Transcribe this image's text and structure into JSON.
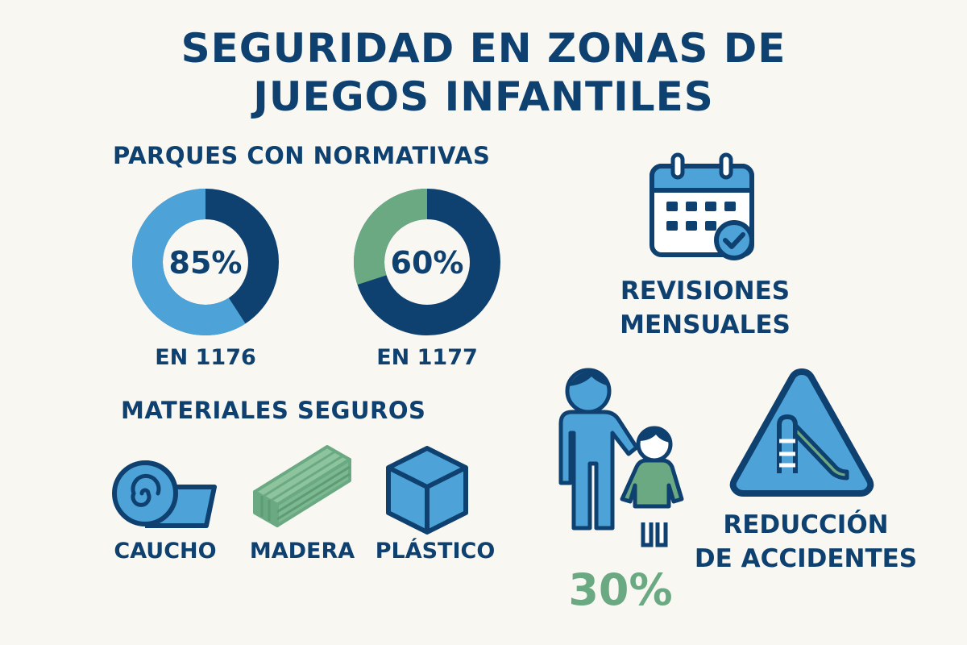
{
  "title": {
    "line1": "SEGURIDAD EN ZONAS DE",
    "line2": "JUEGOS INFANTILES"
  },
  "parks_section": {
    "heading": "PARQUES CON NORMATIVAS",
    "donuts": [
      {
        "percent_label": "85%",
        "value": 0.85,
        "caption": "EN 1176",
        "accent": "#4da3d8"
      },
      {
        "percent_label": "60%",
        "value": 0.6,
        "caption": "EN 1177",
        "accent": "#6aa982"
      }
    ],
    "dark_color": "#0f4170"
  },
  "inspections": {
    "icon": "calendar-check-icon",
    "label_line1": "REVISIONES",
    "label_line2": "MENSUALES"
  },
  "materials_section": {
    "heading": "MATERIALES SEGUROS",
    "items": [
      {
        "icon": "rubber-roll-icon",
        "label": "CAUCHO"
      },
      {
        "icon": "wood-planks-icon",
        "label": "MADERA"
      },
      {
        "icon": "plastic-cube-icon",
        "label": "PLÁSTICO"
      }
    ]
  },
  "accidents": {
    "icon": "family-icon",
    "sign_icon": "playground-warning-sign-icon",
    "percent": "30%",
    "label_line1": "REDUCCIÓN",
    "label_line2": "DE ACCIDENTES",
    "percent_color": "#6aa982"
  }
}
